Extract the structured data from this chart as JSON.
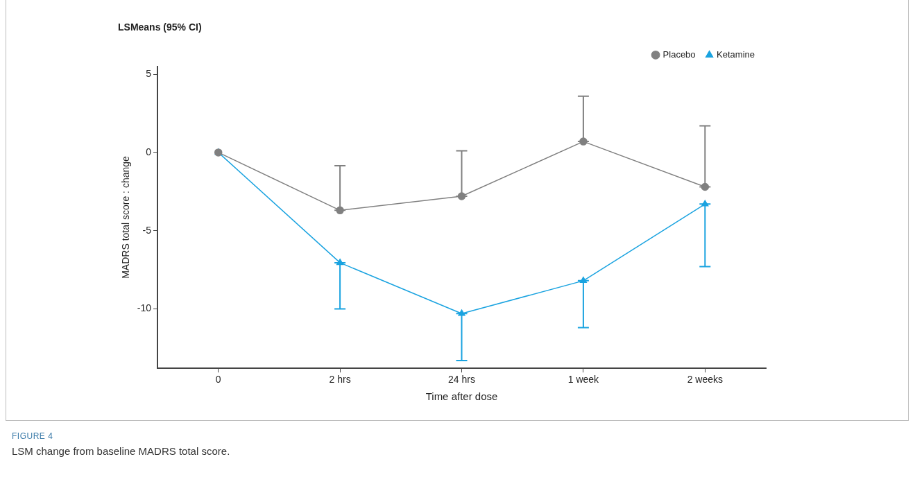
{
  "chart_data": {
    "type": "line",
    "title": "LSMeans (95% CI)",
    "xlabel": "Time after dose",
    "ylabel": "MADRS total score : change",
    "annotations": [
      "FIGURE 4",
      "LSM change from baseline MADRS total score."
    ],
    "categories": [
      "0",
      "2 hrs",
      "24 hrs",
      "1 week",
      "2 weeks"
    ],
    "ylim": [
      -13.8,
      5.5
    ],
    "yticks": [
      -10,
      -5,
      0,
      5
    ],
    "series": [
      {
        "name": "Placebo",
        "color": "#808080",
        "marker": "circle",
        "values": [
          0,
          -3.7,
          -2.8,
          0.7,
          -2.2
        ],
        "errors": [
          null,
          [
            -3.7,
            -0.85
          ],
          [
            -2.8,
            0.1
          ],
          [
            0.7,
            3.6
          ],
          [
            -2.2,
            1.7
          ]
        ]
      },
      {
        "name": "Ketamine",
        "color": "#1aa3e0",
        "marker": "triangle",
        "values": [
          0,
          -7.05,
          -10.3,
          -8.2,
          -3.3
        ],
        "errors": [
          null,
          [
            -10.0,
            -7.05
          ],
          [
            -13.3,
            -10.3
          ],
          [
            -11.2,
            -8.2
          ],
          [
            -7.3,
            -3.3
          ]
        ]
      }
    ],
    "grid": false,
    "legend": "top right",
    "line_style": "solid"
  }
}
